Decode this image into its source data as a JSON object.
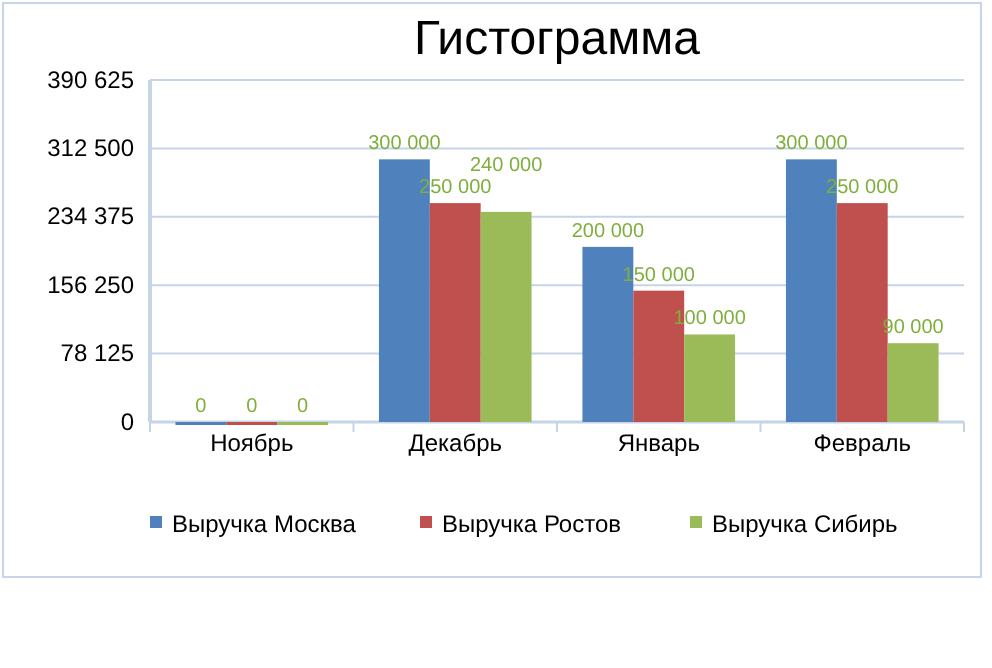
{
  "chart_data": {
    "type": "bar",
    "title": "Гистограмма",
    "categories": [
      "Ноябрь",
      "Декабрь",
      "Январь",
      "Февраль"
    ],
    "series": [
      {
        "name": "Выручка Москва",
        "color": "#4f81bd",
        "values": [
          0,
          300000,
          200000,
          300000
        ],
        "value_labels": [
          "0",
          "300 000",
          "200 000",
          "300 000"
        ]
      },
      {
        "name": "Выручка Ростов",
        "color": "#c0504d",
        "values": [
          0,
          250000,
          150000,
          250000
        ],
        "value_labels": [
          "0",
          "250 000",
          "150 000",
          "250 000"
        ]
      },
      {
        "name": "Выручка Сибирь",
        "color": "#9bbb59",
        "values": [
          0,
          240000,
          100000,
          90000
        ],
        "value_labels": [
          "0",
          "240 000",
          "100 000",
          "90 000"
        ]
      }
    ],
    "ylim": [
      0,
      390625
    ],
    "yticks": [
      0,
      {
        "value": 78125,
        "label": "78 125"
      },
      {
        "value": 156250,
        "label": "156 250"
      },
      {
        "value": 234375,
        "label": "234 375"
      },
      {
        "value": 312500,
        "label": "312 500"
      },
      {
        "value": 390625,
        "label": "390 625"
      }
    ],
    "grid": "y",
    "legend": "bottom"
  }
}
